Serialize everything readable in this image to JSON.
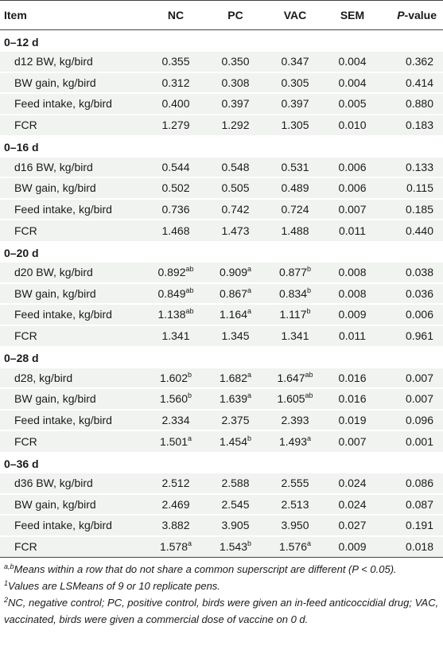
{
  "headers": {
    "item": "Item",
    "nc": "NC",
    "pc": "PC",
    "vac": "VAC",
    "sem": "SEM",
    "p_prefix": "P",
    "p_suffix": "-value"
  },
  "sections": [
    {
      "label": "0–12 d",
      "rows": [
        {
          "item": "d12 BW, kg/bird",
          "nc": "0.355",
          "nc_sup": "",
          "pc": "0.350",
          "pc_sup": "",
          "vac": "0.347",
          "vac_sup": "",
          "sem": "0.004",
          "p": "0.362"
        },
        {
          "item": "BW gain, kg/bird",
          "nc": "0.312",
          "nc_sup": "",
          "pc": "0.308",
          "pc_sup": "",
          "vac": "0.305",
          "vac_sup": "",
          "sem": "0.004",
          "p": "0.414"
        },
        {
          "item": "Feed intake, kg/bird",
          "nc": "0.400",
          "nc_sup": "",
          "pc": "0.397",
          "pc_sup": "",
          "vac": "0.397",
          "vac_sup": "",
          "sem": "0.005",
          "p": "0.880"
        },
        {
          "item": "FCR",
          "nc": "1.279",
          "nc_sup": "",
          "pc": "1.292",
          "pc_sup": "",
          "vac": "1.305",
          "vac_sup": "",
          "sem": "0.010",
          "p": "0.183"
        }
      ]
    },
    {
      "label": "0–16 d",
      "rows": [
        {
          "item": "d16 BW, kg/bird",
          "nc": "0.544",
          "nc_sup": "",
          "pc": "0.548",
          "pc_sup": "",
          "vac": "0.531",
          "vac_sup": "",
          "sem": "0.006",
          "p": "0.133"
        },
        {
          "item": "BW gain, kg/bird",
          "nc": "0.502",
          "nc_sup": "",
          "pc": "0.505",
          "pc_sup": "",
          "vac": "0.489",
          "vac_sup": "",
          "sem": "0.006",
          "p": "0.115"
        },
        {
          "item": "Feed intake, kg/bird",
          "nc": "0.736",
          "nc_sup": "",
          "pc": "0.742",
          "pc_sup": "",
          "vac": "0.724",
          "vac_sup": "",
          "sem": "0.007",
          "p": "0.185"
        },
        {
          "item": "FCR",
          "nc": "1.468",
          "nc_sup": "",
          "pc": "1.473",
          "pc_sup": "",
          "vac": "1.488",
          "vac_sup": "",
          "sem": "0.011",
          "p": "0.440"
        }
      ]
    },
    {
      "label": "0–20 d",
      "rows": [
        {
          "item": "d20 BW, kg/bird",
          "nc": "0.892",
          "nc_sup": "ab",
          "pc": "0.909",
          "pc_sup": "a",
          "vac": "0.877",
          "vac_sup": "b",
          "sem": "0.008",
          "p": "0.038"
        },
        {
          "item": "BW gain, kg/bird",
          "nc": "0.849",
          "nc_sup": "ab",
          "pc": "0.867",
          "pc_sup": "a",
          "vac": "0.834",
          "vac_sup": "b",
          "sem": "0.008",
          "p": "0.036"
        },
        {
          "item": "Feed intake, kg/bird",
          "nc": "1.138",
          "nc_sup": "ab",
          "pc": "1.164",
          "pc_sup": "a",
          "vac": "1.117",
          "vac_sup": "b",
          "sem": "0.009",
          "p": "0.006"
        },
        {
          "item": "FCR",
          "nc": "1.341",
          "nc_sup": "",
          "pc": "1.345",
          "pc_sup": "",
          "vac": "1.341",
          "vac_sup": "",
          "sem": "0.011",
          "p": "0.961"
        }
      ]
    },
    {
      "label": "0–28 d",
      "rows": [
        {
          "item": "d28, kg/bird",
          "nc": "1.602",
          "nc_sup": "b",
          "pc": "1.682",
          "pc_sup": "a",
          "vac": "1.647",
          "vac_sup": "ab",
          "sem": "0.016",
          "p": "0.007"
        },
        {
          "item": "BW gain, kg/bird",
          "nc": "1.560",
          "nc_sup": "b",
          "pc": "1.639",
          "pc_sup": "a",
          "vac": "1.605",
          "vac_sup": "ab",
          "sem": "0.016",
          "p": "0.007"
        },
        {
          "item": "Feed intake, kg/bird",
          "nc": "2.334",
          "nc_sup": "",
          "pc": "2.375",
          "pc_sup": "",
          "vac": "2.393",
          "vac_sup": "",
          "sem": "0.019",
          "p": "0.096"
        },
        {
          "item": "FCR",
          "nc": "1.501",
          "nc_sup": "a",
          "pc": "1.454",
          "pc_sup": "b",
          "vac": "1.493",
          "vac_sup": "a",
          "sem": "0.007",
          "p": "0.001"
        }
      ]
    },
    {
      "label": "0–36 d",
      "rows": [
        {
          "item": "d36 BW, kg/bird",
          "nc": "2.512",
          "nc_sup": "",
          "pc": "2.588",
          "pc_sup": "",
          "vac": "2.555",
          "vac_sup": "",
          "sem": "0.024",
          "p": "0.086"
        },
        {
          "item": "BW gain, kg/bird",
          "nc": "2.469",
          "nc_sup": "",
          "pc": "2.545",
          "pc_sup": "",
          "vac": "2.513",
          "vac_sup": "",
          "sem": "0.024",
          "p": "0.087"
        },
        {
          "item": "Feed intake, kg/bird",
          "nc": "3.882",
          "nc_sup": "",
          "pc": "3.905",
          "pc_sup": "",
          "vac": "3.950",
          "vac_sup": "",
          "sem": "0.027",
          "p": "0.191"
        },
        {
          "item": "FCR",
          "nc": "1.578",
          "nc_sup": "a",
          "pc": "1.543",
          "pc_sup": "b",
          "vac": "1.576",
          "vac_sup": "a",
          "sem": "0.009",
          "p": "0.018"
        }
      ]
    }
  ],
  "footnotes": [
    {
      "mark": "a,b",
      "text": "Means within a row that do not share a common superscript are different (P < 0.05)."
    },
    {
      "mark": "1",
      "text": "Values are LSMeans of 9 or 10 replicate pens."
    },
    {
      "mark": "2",
      "text": "NC, negative control; PC, positive control, birds were given an in-feed anticoccidial drug; VAC, vaccinated, birds were given a commercial dose of vaccine on 0 d."
    }
  ]
}
